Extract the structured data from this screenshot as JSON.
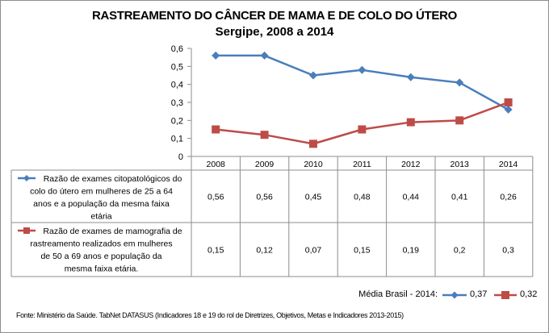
{
  "chart_data": {
    "type": "line",
    "title": "RASTREAMENTO DO CÂNCER DE MAMA E DE COLO DO ÚTERO",
    "subtitle": "Sergipe, 2008 a 2014",
    "categories": [
      "2008",
      "2009",
      "2010",
      "2011",
      "2012",
      "2013",
      "2014"
    ],
    "ylim": [
      0,
      0.6
    ],
    "yticks": [
      "0",
      "0,1",
      "0,2",
      "0,3",
      "0,4",
      "0,5",
      "0,6"
    ],
    "ytick_values": [
      0,
      0.1,
      0.2,
      0.3,
      0.4,
      0.5,
      0.6
    ],
    "grid": false,
    "data_table": true,
    "series": [
      {
        "name": "Razão de exames citopatológicos do colo do útero em mulheres de 25 a 64 anos e a população da mesma faixa etária",
        "label_lines": [
          "Razão de exames citopatológicos do",
          "colo do útero em mulheres de 25 a 64",
          "anos e a população da mesma faixa",
          "etária"
        ],
        "color": "#4a7ebb",
        "marker": "diamond",
        "values": [
          0.56,
          0.56,
          0.45,
          0.48,
          0.44,
          0.41,
          0.26
        ],
        "display_values": [
          "0,56",
          "0,56",
          "0,45",
          "0,48",
          "0,44",
          "0,41",
          "0,26"
        ]
      },
      {
        "name": "Razão de exames de mamografia de rastreamento realizados em mulheres de 50 a 69 anos e população da mesma faixa etária.",
        "label_lines": [
          "Razão de exames de mamografia de",
          "rastreamento realizados em mulheres",
          "de 50 a 69 anos e população da",
          "mesma faixa etária."
        ],
        "color": "#be4b48",
        "marker": "square",
        "values": [
          0.15,
          0.12,
          0.07,
          0.15,
          0.19,
          0.2,
          0.3
        ],
        "display_values": [
          "0,15",
          "0,12",
          "0,07",
          "0,15",
          "0,19",
          "0,2",
          "0,3"
        ]
      }
    ],
    "annotation": {
      "label": "Média Brasil - 2014:",
      "items": [
        {
          "marker": "diamond",
          "color": "#4a7ebb",
          "value": "0,37"
        },
        {
          "marker": "square",
          "color": "#be4b48",
          "value": "0,32"
        }
      ]
    },
    "source": "Fonte: Ministério da Saúde. TabNet DATASUS (Indicadores 18 e 19 do rol de Diretrizes, Objetivos, Metas e Indicadores 2013-2015)"
  }
}
